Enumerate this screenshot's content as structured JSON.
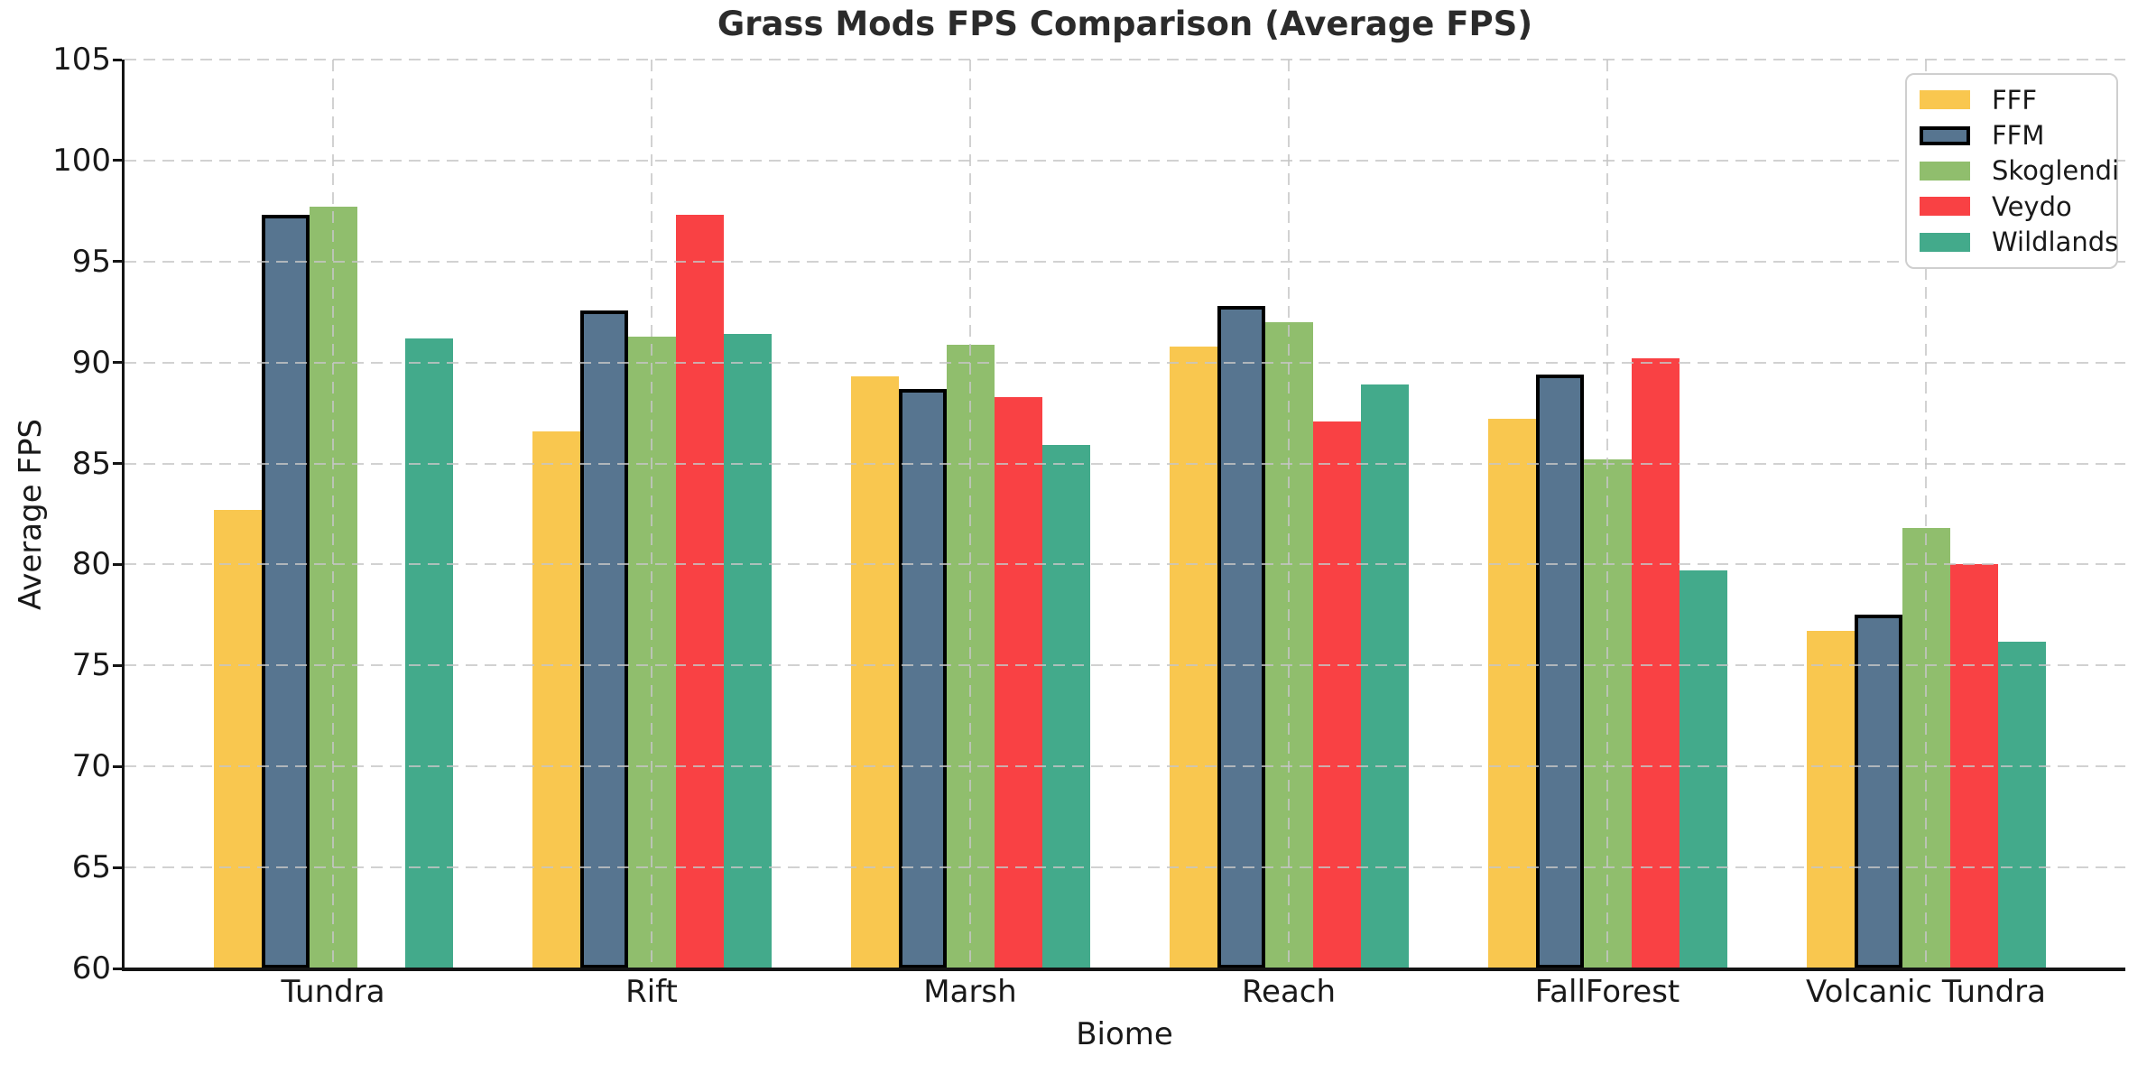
{
  "chart_data": {
    "type": "bar",
    "title": "Grass Mods FPS Comparison (Average FPS)",
    "xlabel": "Biome",
    "ylabel": "Average FPS",
    "ylim": [
      60,
      105
    ],
    "yticks": [
      60,
      65,
      70,
      75,
      80,
      85,
      90,
      95,
      100,
      105
    ],
    "categories": [
      "Tundra",
      "Rift",
      "Marsh",
      "Reach",
      "FallForest",
      "Volcanic Tundra"
    ],
    "series": [
      {
        "name": "FFF",
        "color": "#F9C74F",
        "edge_color": null,
        "values": [
          82.7,
          86.6,
          89.3,
          90.8,
          87.2,
          76.7
        ]
      },
      {
        "name": "FFM",
        "color": "#577590",
        "edge_color": "#000000",
        "values": [
          97.3,
          92.6,
          88.7,
          92.8,
          89.4,
          77.5
        ]
      },
      {
        "name": "Skoglendi",
        "color": "#90BE6D",
        "edge_color": null,
        "values": [
          97.7,
          91.3,
          90.9,
          92.0,
          85.2,
          81.8
        ]
      },
      {
        "name": "Veydo",
        "color": "#F94144",
        "edge_color": null,
        "values": [
          null,
          97.3,
          88.3,
          87.1,
          90.2,
          80.0
        ]
      },
      {
        "name": "Wildlands",
        "color": "#43AA8B",
        "edge_color": null,
        "values": [
          91.2,
          91.4,
          85.9,
          88.9,
          79.7,
          76.2
        ]
      }
    ],
    "legend": {
      "position": "upper right",
      "labels": [
        "FFF",
        "FFM",
        "Skoglendi",
        "Veydo",
        "Wildlands"
      ]
    },
    "grid": {
      "visible": true,
      "style": "dashed",
      "color": "#c6c6c6",
      "axes": "both",
      "above_bars": true
    },
    "bar_width_fraction": 0.15,
    "background_color": "#ffffff",
    "text_color": "#191919"
  }
}
